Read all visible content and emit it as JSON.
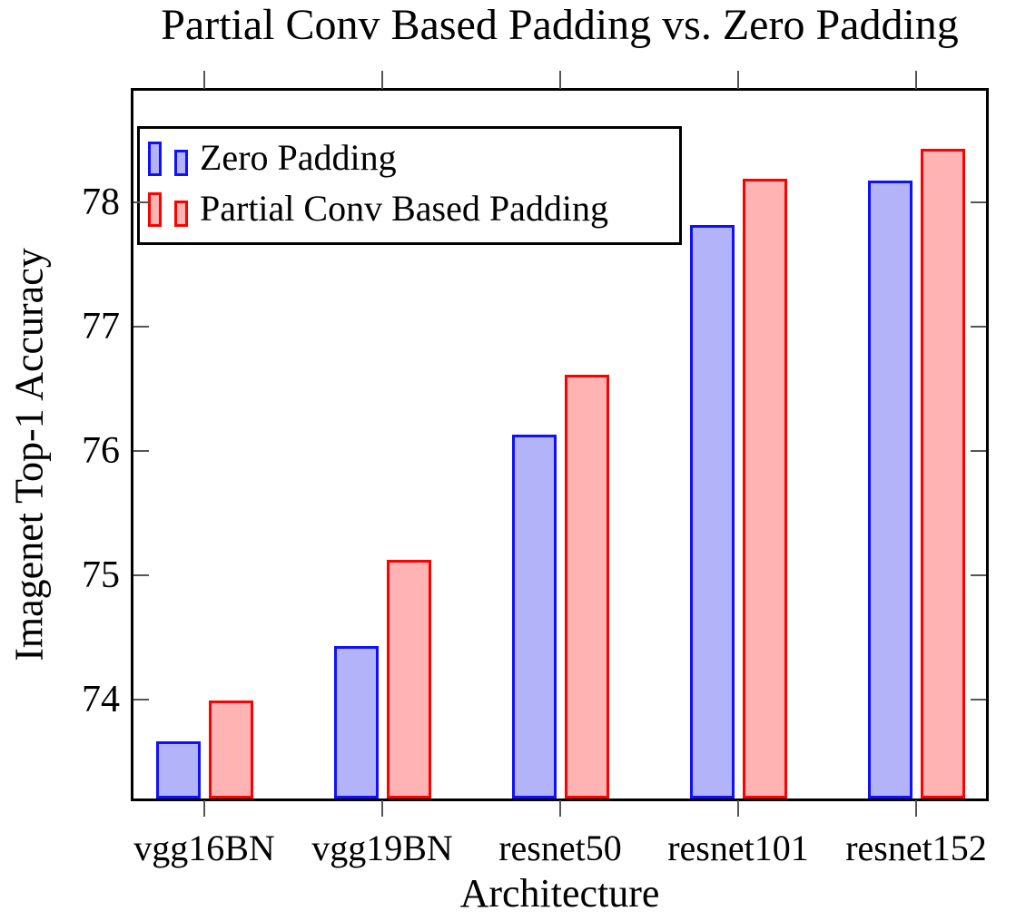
{
  "chart_data": {
    "type": "bar",
    "title": "Partial Conv Based Padding vs. Zero Padding",
    "xlabel": "Architecture",
    "ylabel": "Imagenet Top-1 Accuracy",
    "categories": [
      "vgg16BN",
      "vgg19BN",
      "resnet50",
      "resnet101",
      "resnet152"
    ],
    "series": [
      {
        "name": "Zero Padding",
        "fill": "#b3b3fa",
        "border": "#1010ff",
        "values": [
          73.66,
          74.43,
          76.13,
          77.82,
          78.18
        ]
      },
      {
        "name": "Partial Conv Based Padding",
        "fill": "#ffb3b3",
        "border": "#ff0000",
        "values": [
          73.99,
          75.12,
          76.61,
          78.19,
          78.43
        ]
      }
    ],
    "yticks": [
      74,
      75,
      76,
      77,
      78
    ],
    "ylim": [
      73.2,
      78.9
    ],
    "legend_position": "north west",
    "grid": false,
    "colors": {
      "axis": "#000000",
      "ticks": "#555555",
      "background": "#ffffff"
    }
  }
}
